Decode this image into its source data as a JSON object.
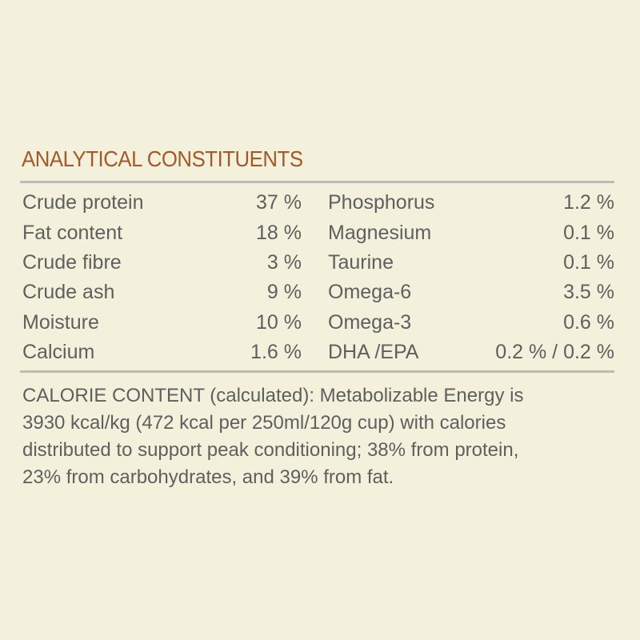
{
  "title": "ANALYTICAL CONSTITUENTS",
  "left": [
    {
      "label": "Crude protein",
      "value": "37 %"
    },
    {
      "label": "Fat content",
      "value": "18 %"
    },
    {
      "label": "Crude fibre",
      "value": "3 %"
    },
    {
      "label": "Crude ash",
      "value": "9 %"
    },
    {
      "label": "Moisture",
      "value": "10 %"
    },
    {
      "label": "Calcium",
      "value": "1.6 %"
    }
  ],
  "right": [
    {
      "label": "Phosphorus",
      "value": "1.2 %"
    },
    {
      "label": "Magnesium",
      "value": "0.1 %"
    },
    {
      "label": "Taurine",
      "value": "0.1 %"
    },
    {
      "label": "Omega-6",
      "value": "3.5 %"
    },
    {
      "label": "Omega-3",
      "value": "0.6 %"
    },
    {
      "label": "DHA /EPA",
      "value": "0.2 % / 0.2 %"
    }
  ],
  "calorie_lines": [
    "CALORIE CONTENT (calculated): Metabolizable Energy is",
    "3930 kcal/kg (472 kcal per 250ml/120g cup) with calories",
    "distributed to support peak conditioning; 38% from protein,",
    "23% from carbohydrates, and 39% from fat."
  ],
  "colors": {
    "background": "#f3f1dc",
    "title": "#a4592a",
    "text": "#5f5f5f",
    "rule": "#bdbcb6"
  }
}
